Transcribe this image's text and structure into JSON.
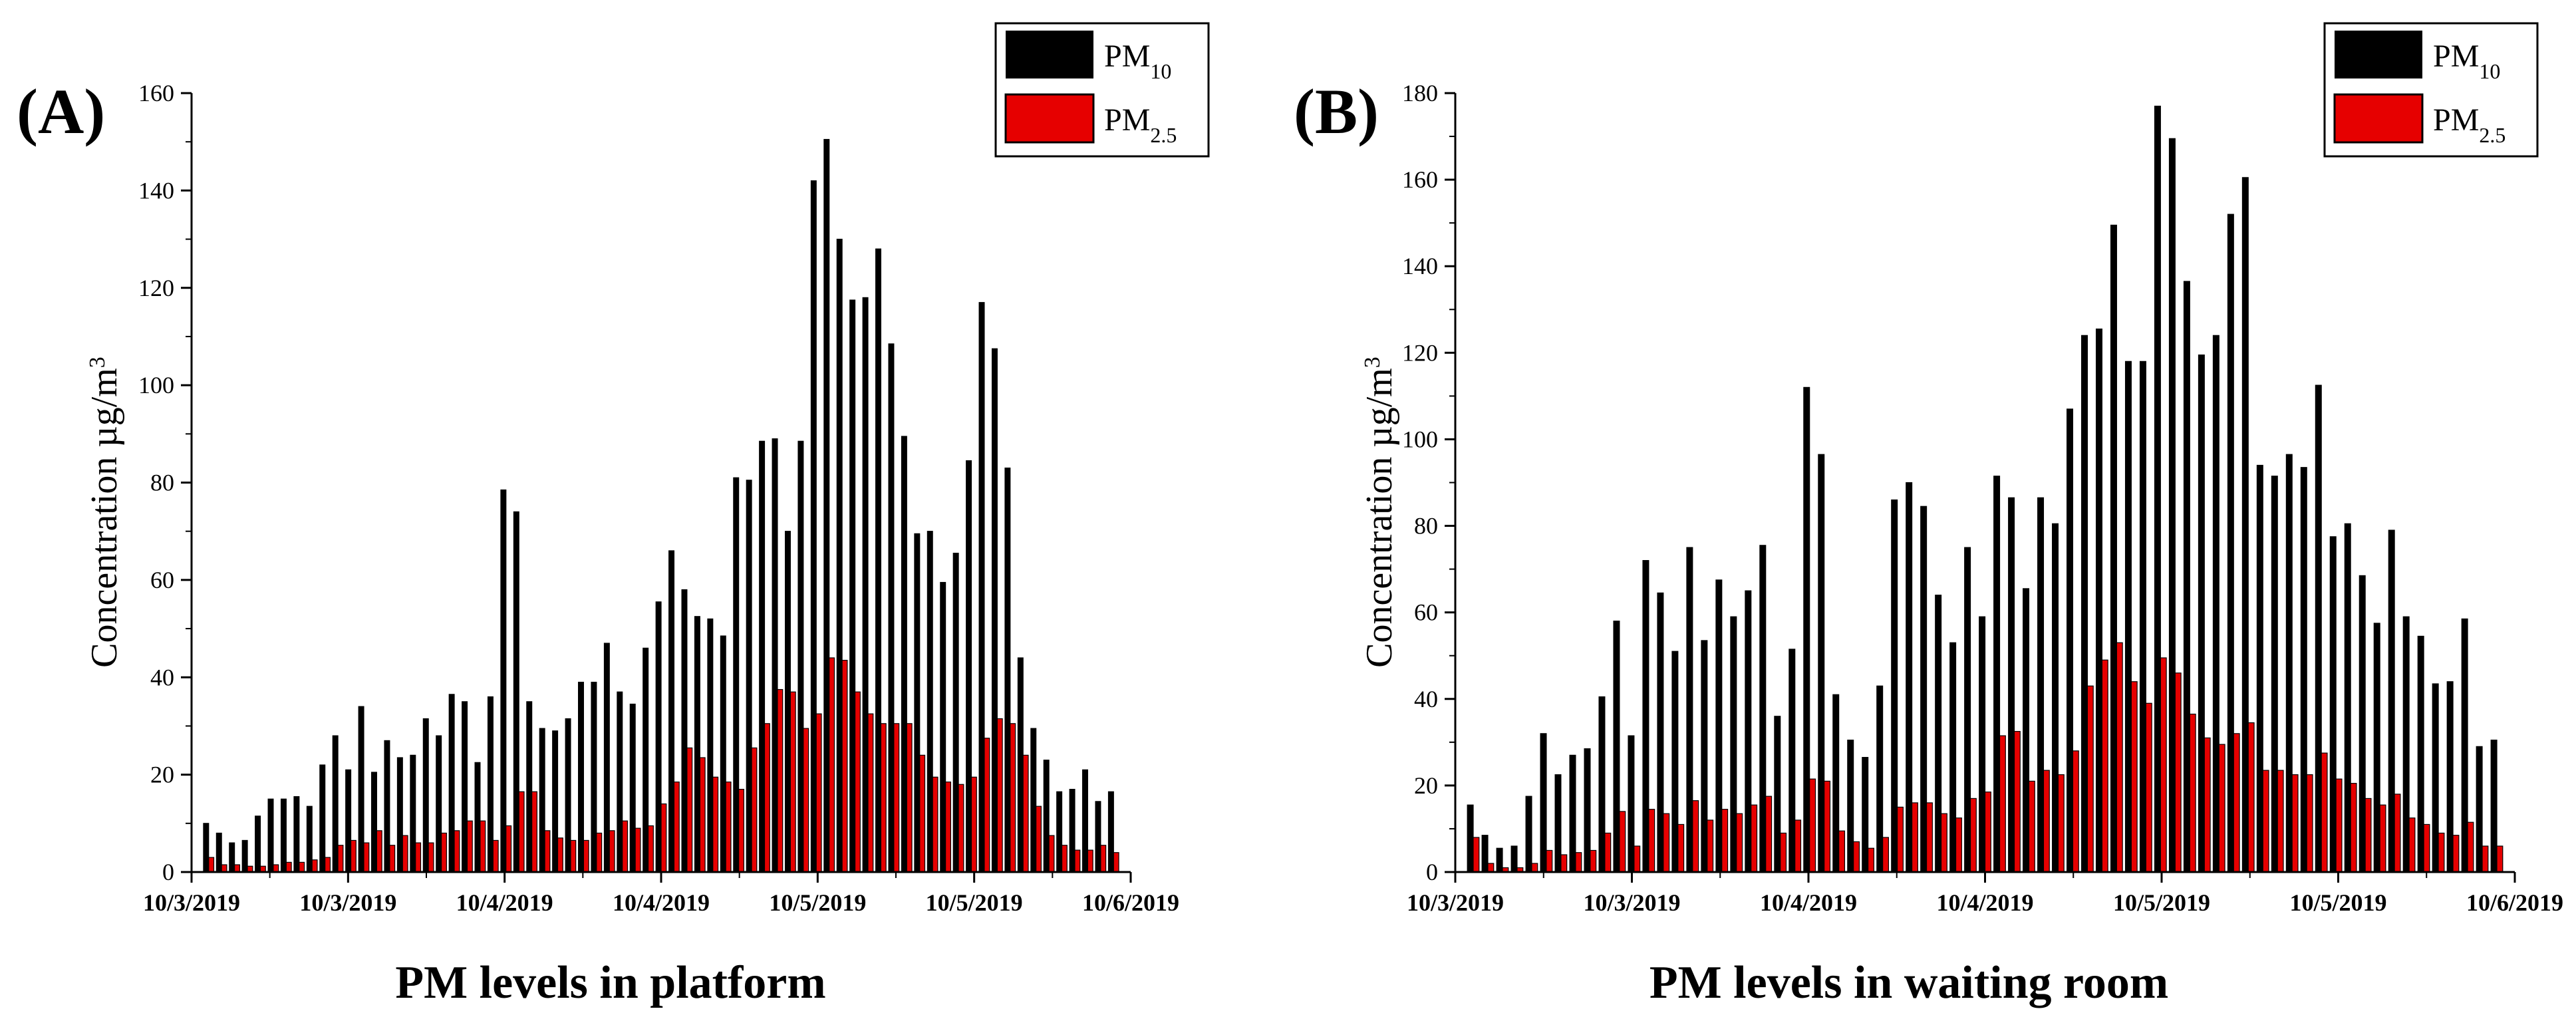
{
  "chart_data": [
    {
      "type": "bar",
      "panel_label": "(A)",
      "caption": "PM levels in platform",
      "ylabel": "Concentration µg/m",
      "ylabel_superscript": "3",
      "ylim": [
        0,
        160
      ],
      "yticks": [
        "0",
        "20",
        "40",
        "60",
        "80",
        "100",
        "120",
        "140",
        "160"
      ],
      "xtick_labels": [
        "10/3/2019",
        "10/3/2019",
        "10/4/2019",
        "10/4/2019",
        "10/5/2019",
        "10/5/2019",
        "10/6/2019"
      ],
      "legend": [
        {
          "name": "PM",
          "sub": "10",
          "color": "#000000"
        },
        {
          "name": "PM",
          "sub": "2.5",
          "color": "#e60000"
        }
      ],
      "series": [
        {
          "name": "PM10",
          "color": "#000000",
          "values": [
            10,
            8,
            6,
            6.5,
            11.5,
            15,
            15,
            15.5,
            13.5,
            22,
            28,
            21,
            34,
            20.5,
            27,
            23.5,
            24,
            31.5,
            28,
            36.5,
            35,
            22.5,
            36,
            78.5,
            74,
            35,
            29.5,
            29,
            31.5,
            39,
            39,
            47,
            37,
            34.5,
            46,
            55.5,
            66,
            58,
            52.5,
            52,
            48.5,
            81,
            80.5,
            88.5,
            89,
            70,
            88.5,
            142,
            150.5,
            130,
            117.5,
            118,
            128,
            108.5,
            89.5,
            69.5,
            70,
            59.5,
            65.5,
            84.5,
            117,
            107.5,
            83,
            44,
            29.5,
            23,
            16.5,
            17,
            21,
            14.5,
            16.5
          ]
        },
        {
          "name": "PM2.5",
          "color": "#e60000",
          "values": [
            3,
            1.5,
            1.5,
            1.2,
            1.2,
            1.5,
            2,
            2,
            2.5,
            3,
            5.5,
            6.5,
            6,
            8.5,
            5.5,
            7.5,
            6,
            6,
            8,
            8.5,
            10.5,
            10.5,
            6.5,
            9.5,
            16.5,
            16.5,
            8.5,
            7,
            6.5,
            6.5,
            8,
            8.5,
            10.5,
            9,
            9.5,
            14,
            18.5,
            25.5,
            23.5,
            19.5,
            18.5,
            17,
            25.5,
            30.5,
            37.5,
            37,
            29.5,
            32.5,
            44,
            43.5,
            37,
            32.5,
            30.5,
            30.5,
            30.5,
            24,
            19.5,
            18.5,
            18,
            19.5,
            27.5,
            31.5,
            30.5,
            24,
            13.5,
            7.5,
            5.5,
            4.5,
            4.5,
            5.5,
            4
          ]
        }
      ]
    },
    {
      "type": "bar",
      "panel_label": "(B)",
      "caption": "PM levels in waiting room",
      "ylabel": "Concentration µg/m",
      "ylabel_superscript": "3",
      "ylim": [
        0,
        180
      ],
      "yticks": [
        "0",
        "20",
        "40",
        "60",
        "80",
        "100",
        "120",
        "140",
        "160",
        "180"
      ],
      "xtick_labels": [
        "10/3/2019",
        "10/3/2019",
        "10/4/2019",
        "10/4/2019",
        "10/5/2019",
        "10/5/2019",
        "10/6/2019"
      ],
      "legend": [
        {
          "name": "PM",
          "sub": "10",
          "color": "#000000"
        },
        {
          "name": "PM",
          "sub": "2.5",
          "color": "#e60000"
        }
      ],
      "series": [
        {
          "name": "PM10",
          "color": "#000000",
          "values": [
            15.5,
            8.5,
            5.5,
            6,
            17.5,
            32,
            22.5,
            27,
            28.5,
            40.5,
            58,
            31.5,
            72,
            64.5,
            51,
            75,
            53.5,
            67.5,
            59,
            65,
            75.5,
            36,
            51.5,
            112,
            96.5,
            41,
            30.5,
            26.5,
            43,
            86,
            90,
            84.5,
            64,
            53,
            75,
            59,
            91.5,
            86.5,
            65.5,
            86.5,
            80.5,
            107,
            124,
            125.5,
            149.5,
            118,
            118,
            177,
            169.5,
            136.5,
            119.5,
            124,
            152,
            160.5,
            94,
            91.5,
            96.5,
            93.5,
            112.5,
            77.5,
            80.5,
            68.5,
            57.5,
            79,
            59,
            54.5,
            43.5,
            44,
            58.5,
            29,
            30.5
          ]
        },
        {
          "name": "PM2.5",
          "color": "#e60000",
          "values": [
            8,
            2,
            1,
            1,
            2,
            5,
            4,
            4.5,
            5,
            9,
            14,
            6,
            14.5,
            13.5,
            11,
            16.5,
            12,
            14.5,
            13.5,
            15.5,
            17.5,
            9,
            12,
            21.5,
            21,
            9.5,
            7,
            5.5,
            8,
            15,
            16,
            16,
            13.5,
            12.5,
            17,
            18.5,
            31.5,
            32.5,
            21,
            23.5,
            22.5,
            28,
            43,
            49,
            53,
            44,
            39,
            49.5,
            46,
            36.5,
            31,
            29.5,
            32,
            34.5,
            23.5,
            23.5,
            22.5,
            22.5,
            27.5,
            21.5,
            20.5,
            17,
            15.5,
            18,
            12.5,
            11,
            9,
            8.5,
            11.5,
            6,
            6
          ]
        }
      ]
    }
  ]
}
